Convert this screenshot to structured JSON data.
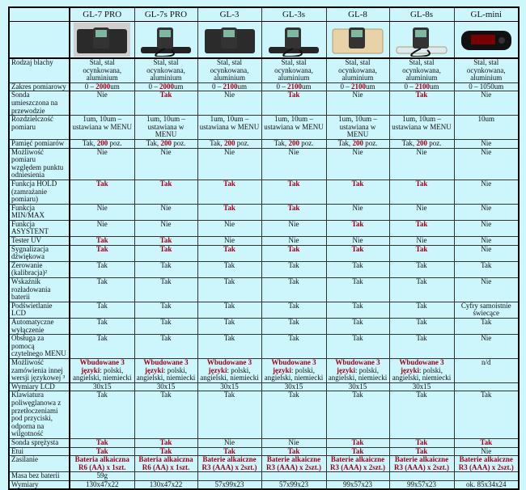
{
  "colors": {
    "highlight": "#a0001a",
    "background": "#ccf6fb",
    "border": "#000000"
  },
  "models": [
    "GL-7 PRO",
    "GL-7s PRO",
    "GL-3",
    "GL-3s",
    "GL-8",
    "GL-8s",
    "GL-mini"
  ],
  "images": [
    "gl-7-pro-gauge-with-case",
    "gl-7s-pro-gauge-with-probe",
    "gl-3-gauge-with-case",
    "gl-3s-gauge-with-case",
    "gl-8-gauge-with-case",
    "gl-8s-gauge-with-probe",
    "gl-mini-gauge"
  ],
  "rows": [
    {
      "label": "Rodzaj blachy",
      "cells": [
        [
          {
            "t": "Stal, stal ocynkowana, aluminium"
          }
        ],
        [
          {
            "t": "Stal, stal ocynkowana, aluminium"
          }
        ],
        [
          {
            "t": "Stal, stal ocynkowana, aluminium"
          }
        ],
        [
          {
            "t": "Stal, stal ocynkowana, aluminium"
          }
        ],
        [
          {
            "t": "Stal, stal ocynkowana, aluminium"
          }
        ],
        [
          {
            "t": "Stal, stal ocynkowana, aluminium"
          }
        ],
        [
          {
            "t": "Stal, stal ocynkowana, aluminium"
          }
        ]
      ]
    },
    {
      "label": "Zakres pomiarowy",
      "cells": [
        [
          {
            "t": "0 – "
          },
          {
            "t": "2000",
            "hl": true
          },
          {
            "t": "um"
          }
        ],
        [
          {
            "t": "0 – "
          },
          {
            "t": "2000",
            "hl": true
          },
          {
            "t": "um"
          }
        ],
        [
          {
            "t": "0 – "
          },
          {
            "t": "2100",
            "hl": true
          },
          {
            "t": "um"
          }
        ],
        [
          {
            "t": "0 – "
          },
          {
            "t": "2100",
            "hl": true
          },
          {
            "t": "um"
          }
        ],
        [
          {
            "t": "0 – "
          },
          {
            "t": "2100",
            "hl": true
          },
          {
            "t": "um"
          }
        ],
        [
          {
            "t": "0 – "
          },
          {
            "t": "2100",
            "hl": true
          },
          {
            "t": "um"
          }
        ],
        [
          {
            "t": "0 – 1050um"
          }
        ]
      ]
    },
    {
      "label": "Sonda umieszczona na przewodzie",
      "cells": [
        [
          {
            "t": "Nie"
          }
        ],
        [
          {
            "t": "Tak",
            "hl": true
          }
        ],
        [
          {
            "t": "Nie"
          }
        ],
        [
          {
            "t": "Tak",
            "hl": true
          }
        ],
        [
          {
            "t": "Nie"
          }
        ],
        [
          {
            "t": "Tak",
            "hl": true
          }
        ],
        [
          {
            "t": "Nie"
          }
        ]
      ]
    },
    {
      "label": "Rozdzielczość pomiaru",
      "cells": [
        [
          {
            "t": "1um, 10um – ustawiana w MENU"
          }
        ],
        [
          {
            "t": "1um, 10um – ustawiana w MENU"
          }
        ],
        [
          {
            "t": "1um, 10um – ustawiana w MENU"
          }
        ],
        [
          {
            "t": "1um, 10um – ustawiana w MENU"
          }
        ],
        [
          {
            "t": "1um, 10um – ustawiana w MENU"
          }
        ],
        [
          {
            "t": "1um, 10um – ustawiana w MENU"
          }
        ],
        [
          {
            "t": "10um"
          }
        ]
      ]
    },
    {
      "label": "Pamięć pomiarów",
      "cells": [
        [
          {
            "t": "Tak, "
          },
          {
            "t": "200",
            "hl": true
          },
          {
            "t": " poz."
          }
        ],
        [
          {
            "t": "Tak, "
          },
          {
            "t": "200",
            "hl": true
          },
          {
            "t": " poz."
          }
        ],
        [
          {
            "t": "Tak, "
          },
          {
            "t": "200",
            "hl": true
          },
          {
            "t": " poz."
          }
        ],
        [
          {
            "t": "Tak, "
          },
          {
            "t": "200",
            "hl": true
          },
          {
            "t": " poz."
          }
        ],
        [
          {
            "t": "Tak, "
          },
          {
            "t": "200",
            "hl": true
          },
          {
            "t": " poz."
          }
        ],
        [
          {
            "t": "Tak, "
          },
          {
            "t": "200",
            "hl": true
          },
          {
            "t": " poz."
          }
        ],
        [
          {
            "t": "Nie"
          }
        ]
      ]
    },
    {
      "label": "Możliwość pomiaru względem punktu odniesienia",
      "cells": [
        [
          {
            "t": "Nie"
          }
        ],
        [
          {
            "t": "Nie"
          }
        ],
        [
          {
            "t": "Nie"
          }
        ],
        [
          {
            "t": "Nie"
          }
        ],
        [
          {
            "t": "Nie"
          }
        ],
        [
          {
            "t": "Nie"
          }
        ],
        [
          {
            "t": "Nie"
          }
        ]
      ]
    },
    {
      "label": "Funkcja HOLD (zamrażanie pomiaru)",
      "cells": [
        [
          {
            "t": "Tak",
            "hl": true
          }
        ],
        [
          {
            "t": "Tak",
            "hl": true
          }
        ],
        [
          {
            "t": "Tak",
            "hl": true
          }
        ],
        [
          {
            "t": "Tak",
            "hl": true
          }
        ],
        [
          {
            "t": "Tak",
            "hl": true
          }
        ],
        [
          {
            "t": "Tak",
            "hl": true
          }
        ],
        [
          {
            "t": "Nie"
          }
        ]
      ]
    },
    {
      "label": "Funkcja MIN/MAX",
      "cells": [
        [
          {
            "t": "Nie"
          }
        ],
        [
          {
            "t": "Nie"
          }
        ],
        [
          {
            "t": "Tak",
            "hl": true
          }
        ],
        [
          {
            "t": "Tak",
            "hl": true
          }
        ],
        [
          {
            "t": "Nie"
          }
        ],
        [
          {
            "t": "Nie"
          }
        ],
        [
          {
            "t": "Nie"
          }
        ]
      ]
    },
    {
      "label": "Funkcja ASYSTENT",
      "cells": [
        [
          {
            "t": "Nie"
          }
        ],
        [
          {
            "t": "Nie"
          }
        ],
        [
          {
            "t": "Nie"
          }
        ],
        [
          {
            "t": "Nie"
          }
        ],
        [
          {
            "t": "Tak",
            "hl": true
          }
        ],
        [
          {
            "t": "Tak",
            "hl": true
          }
        ],
        [
          {
            "t": "Nie"
          }
        ]
      ]
    },
    {
      "label": "Tester UV",
      "cells": [
        [
          {
            "t": "Tak",
            "hl": true
          }
        ],
        [
          {
            "t": "Tak",
            "hl": true
          }
        ],
        [
          {
            "t": "Nie"
          }
        ],
        [
          {
            "t": "Nie"
          }
        ],
        [
          {
            "t": "Nie"
          }
        ],
        [
          {
            "t": "Nie"
          }
        ],
        [
          {
            "t": "Nie"
          }
        ]
      ]
    },
    {
      "label": "Sygnalizacja dźwiękowa",
      "cells": [
        [
          {
            "t": "Tak",
            "hl": true
          }
        ],
        [
          {
            "t": "Tak",
            "hl": true
          }
        ],
        [
          {
            "t": "Tak",
            "hl": true
          }
        ],
        [
          {
            "t": "Tak",
            "hl": true
          }
        ],
        [
          {
            "t": "Tak",
            "hl": true
          }
        ],
        [
          {
            "t": "Tak",
            "hl": true
          }
        ],
        [
          {
            "t": "Nie"
          }
        ]
      ]
    },
    {
      "label": "Zerowanie (kalibracja)²",
      "cells": [
        [
          {
            "t": "Tak"
          }
        ],
        [
          {
            "t": "Tak"
          }
        ],
        [
          {
            "t": "Tak"
          }
        ],
        [
          {
            "t": "Tak"
          }
        ],
        [
          {
            "t": "Tak"
          }
        ],
        [
          {
            "t": "Tak"
          }
        ],
        [
          {
            "t": "Tak"
          }
        ]
      ]
    },
    {
      "label": "Wskaźnik rozładowania baterii",
      "cells": [
        [
          {
            "t": "Tak"
          }
        ],
        [
          {
            "t": "Tak"
          }
        ],
        [
          {
            "t": "Tak"
          }
        ],
        [
          {
            "t": "Tak"
          }
        ],
        [
          {
            "t": "Tak"
          }
        ],
        [
          {
            "t": "Tak"
          }
        ],
        [
          {
            "t": "Nie"
          }
        ]
      ]
    },
    {
      "label": "Podświetlanie LCD",
      "cells": [
        [
          {
            "t": "Tak"
          }
        ],
        [
          {
            "t": "Tak"
          }
        ],
        [
          {
            "t": "Tak"
          }
        ],
        [
          {
            "t": "Tak"
          }
        ],
        [
          {
            "t": "Tak"
          }
        ],
        [
          {
            "t": "Tak"
          }
        ],
        [
          {
            "t": "Cyfry samoistnie świecące"
          }
        ]
      ]
    },
    {
      "label": "Automatyczne wyłączenie",
      "cells": [
        [
          {
            "t": "Tak"
          }
        ],
        [
          {
            "t": "Tak"
          }
        ],
        [
          {
            "t": "Tak"
          }
        ],
        [
          {
            "t": "Tak"
          }
        ],
        [
          {
            "t": "Tak"
          }
        ],
        [
          {
            "t": "Tak"
          }
        ],
        [
          {
            "t": "Tak"
          }
        ]
      ]
    },
    {
      "label": "Obsługa za pomocą czytelnego MENU",
      "cells": [
        [
          {
            "t": "Tak"
          }
        ],
        [
          {
            "t": "Tak"
          }
        ],
        [
          {
            "t": "Tak"
          }
        ],
        [
          {
            "t": "Tak"
          }
        ],
        [
          {
            "t": "Tak"
          }
        ],
        [
          {
            "t": "Tak"
          }
        ],
        [
          {
            "t": "Nie"
          }
        ]
      ]
    },
    {
      "label": "Możliwość zamówienia innej wersji językowej ³",
      "cells": [
        [
          {
            "t": "Wbudowane 3 języki",
            "hl": true
          },
          {
            "t": ": polski, angielski, niemiecki"
          }
        ],
        [
          {
            "t": "Wbudowane 3 języki",
            "hl": true
          },
          {
            "t": ": polski, angielski, niemiecki"
          }
        ],
        [
          {
            "t": "Wbudowane 3 języki",
            "hl": true
          },
          {
            "t": ": polski, angielski, niemiecki"
          }
        ],
        [
          {
            "t": "Wbudowane 3 języki",
            "hl": true
          },
          {
            "t": ": polski, angielski, niemiecki"
          }
        ],
        [
          {
            "t": "Wbudowane 3 języki",
            "hl": true
          },
          {
            "t": ": polski, angielski, niemiecki"
          }
        ],
        [
          {
            "t": "Wbudowane 3 języki",
            "hl": true
          },
          {
            "t": ": polski, angielski, niemiecki"
          }
        ],
        [
          {
            "t": "n/d"
          }
        ]
      ]
    },
    {
      "label": "Wymiary LCD",
      "cells": [
        [
          {
            "t": "30x15"
          }
        ],
        [
          {
            "t": "30x15"
          }
        ],
        [
          {
            "t": "30x15"
          }
        ],
        [
          {
            "t": "30x15"
          }
        ],
        [
          {
            "t": "30x15"
          }
        ],
        [
          {
            "t": "30x15"
          }
        ],
        []
      ]
    },
    {
      "label": "Klawiatura poliwęglanowa z przetłoczeniami pod przyciski, odporna na wilgotność",
      "cells": [
        [
          {
            "t": "Tak"
          }
        ],
        [
          {
            "t": "Tak"
          }
        ],
        [
          {
            "t": "Tak"
          }
        ],
        [
          {
            "t": "Tak"
          }
        ],
        [
          {
            "t": "Tak"
          }
        ],
        [
          {
            "t": "Tak"
          }
        ],
        [
          {
            "t": "Tak"
          }
        ]
      ]
    },
    {
      "label": "Sonda sprężysta",
      "cells": [
        [
          {
            "t": "Tak",
            "hl": true
          }
        ],
        [
          {
            "t": "Tak",
            "hl": true
          }
        ],
        [
          {
            "t": "Nie"
          }
        ],
        [
          {
            "t": "Nie"
          }
        ],
        [
          {
            "t": "Tak",
            "hl": true
          }
        ],
        [
          {
            "t": "Tak",
            "hl": true
          }
        ],
        [
          {
            "t": "Tak",
            "hl": true
          }
        ]
      ]
    },
    {
      "label": "Etui",
      "cells": [
        [
          {
            "t": "Tak",
            "hl": true
          }
        ],
        [
          {
            "t": "Tak",
            "hl": true
          }
        ],
        [
          {
            "t": "Tak",
            "hl": true
          }
        ],
        [
          {
            "t": "Tak",
            "hl": true
          }
        ],
        [
          {
            "t": "Tak",
            "hl": true
          }
        ],
        [
          {
            "t": "Tak",
            "hl": true
          }
        ],
        [
          {
            "t": "Nie"
          }
        ]
      ]
    },
    {
      "label": "Zasilanie",
      "cells": [
        [
          {
            "t": "Bateria alkaiczna R6 (AA) x 1szt.",
            "hl": true
          }
        ],
        [
          {
            "t": "Bateria alkaiczna R6 (AA) x 1szt.",
            "hl": true
          }
        ],
        [
          {
            "t": "Baterie alkaiczne R3 (AAA) x 2szt.)",
            "hl": true
          }
        ],
        [
          {
            "t": "Baterie alkaiczne R3 (AAA) x 2szt.)",
            "hl": true
          }
        ],
        [
          {
            "t": "Baterie alkaiczne R3 (AAA) x 2szt.)",
            "hl": true
          }
        ],
        [
          {
            "t": "Baterie alkaiczne R3 (AAA) x 2szt.)",
            "hl": true
          }
        ],
        [
          {
            "t": "Baterie alkaiczne R3 (AAA) x 2szt.)",
            "hl": true
          }
        ]
      ]
    },
    {
      "label": "Masa bez baterii",
      "cells": [
        [
          {
            "t": "59g"
          }
        ],
        [],
        [],
        [],
        [],
        [],
        []
      ]
    },
    {
      "label": "Wymiary",
      "cells": [
        [
          {
            "t": "130x47x22"
          }
        ],
        [
          {
            "t": "130x47x22"
          }
        ],
        [
          {
            "t": "57x99x23"
          }
        ],
        [
          {
            "t": "57x99x23"
          }
        ],
        [
          {
            "t": "99x57x23"
          }
        ],
        [
          {
            "t": "99x57x23"
          }
        ],
        [
          {
            "t": "ok. 85x34x24"
          }
        ]
      ]
    }
  ]
}
